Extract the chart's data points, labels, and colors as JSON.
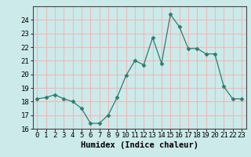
{
  "x": [
    0,
    1,
    2,
    3,
    4,
    5,
    6,
    7,
    8,
    9,
    10,
    11,
    12,
    13,
    14,
    15,
    16,
    17,
    18,
    19,
    20,
    21,
    22,
    23
  ],
  "y": [
    18.2,
    18.3,
    18.5,
    18.2,
    18.0,
    17.5,
    16.4,
    16.4,
    17.0,
    18.3,
    19.9,
    21.0,
    20.7,
    22.7,
    20.8,
    24.4,
    23.5,
    21.9,
    21.9,
    21.5,
    21.5,
    19.1,
    18.2,
    18.2
  ],
  "xlabel": "Humidex (Indice chaleur)",
  "ylim": [
    16,
    25
  ],
  "xlim": [
    -0.5,
    23.5
  ],
  "yticks": [
    16,
    17,
    18,
    19,
    20,
    21,
    22,
    23,
    24
  ],
  "xticks": [
    0,
    1,
    2,
    3,
    4,
    5,
    6,
    7,
    8,
    9,
    10,
    11,
    12,
    13,
    14,
    15,
    16,
    17,
    18,
    19,
    20,
    21,
    22,
    23
  ],
  "xtick_labels": [
    "0",
    "1",
    "2",
    "3",
    "4",
    "5",
    "6",
    "7",
    "8",
    "9",
    "10",
    "11",
    "12",
    "13",
    "14",
    "15",
    "16",
    "17",
    "18",
    "19",
    "20",
    "21",
    "22",
    "23"
  ],
  "line_color": "#2e7d6e",
  "marker": "D",
  "marker_size": 2.5,
  "bg_color": "#cceaea",
  "grid_color": "#f0b8b8",
  "xlabel_fontsize": 7.5,
  "tick_fontsize": 6.5
}
